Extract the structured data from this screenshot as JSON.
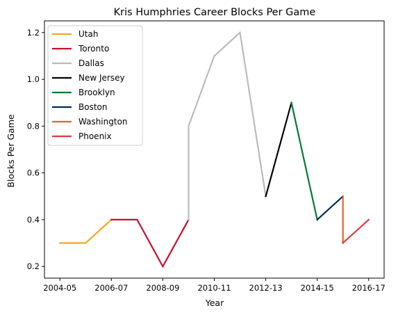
{
  "chart_data": {
    "type": "line",
    "title": "Kris Humphries Career Blocks Per Game",
    "xlabel": "Year",
    "ylabel": "Blocks Per Game",
    "x_ticks": [
      {
        "index": 0,
        "label": "2004-05"
      },
      {
        "index": 2,
        "label": "2006-07"
      },
      {
        "index": 4,
        "label": "2008-09"
      },
      {
        "index": 6,
        "label": "2010-11"
      },
      {
        "index": 8,
        "label": "2012-13"
      },
      {
        "index": 10,
        "label": "2014-15"
      },
      {
        "index": 12,
        "label": "2016-17"
      }
    ],
    "y_ticks": [
      0.2,
      0.4,
      0.6,
      0.8,
      1.0,
      1.2
    ],
    "y_tick_labels": [
      "0.2",
      "0.4",
      "0.6",
      "0.8",
      "1.0",
      "1.2"
    ],
    "xlim": [
      -0.6,
      12.6
    ],
    "ylim": [
      0.15,
      1.25
    ],
    "legend_position": "top-left",
    "series": [
      {
        "name": "Utah",
        "color": "#f5a623",
        "points": [
          [
            0,
            0.3
          ],
          [
            1,
            0.3
          ],
          [
            2,
            0.4
          ]
        ]
      },
      {
        "name": "Toronto",
        "color": "#c8102e",
        "points": [
          [
            2,
            0.4
          ],
          [
            3,
            0.4
          ],
          [
            4,
            0.2
          ],
          [
            5,
            0.4
          ]
        ]
      },
      {
        "name": "Dallas",
        "color": "#bbbbbb",
        "points": [
          [
            5,
            0.4
          ],
          [
            5,
            0.8
          ],
          [
            6,
            1.1
          ],
          [
            7,
            1.2
          ],
          [
            8,
            0.5
          ]
        ]
      },
      {
        "name": "New Jersey",
        "color": "#000000",
        "points": [
          [
            8,
            0.5
          ],
          [
            9,
            0.9
          ]
        ]
      },
      {
        "name": "Brooklyn",
        "color": "#007a33",
        "points": [
          [
            9,
            0.9
          ],
          [
            10,
            0.4
          ]
        ]
      },
      {
        "name": "Boston",
        "color": "#002b5c",
        "points": [
          [
            10,
            0.4
          ],
          [
            11,
            0.5
          ]
        ]
      },
      {
        "name": "Washington",
        "color": "#e0662d",
        "points": [
          [
            11,
            0.5
          ],
          [
            11,
            0.3
          ]
        ]
      },
      {
        "name": "Phoenix",
        "color": "#e03a3e",
        "points": [
          [
            11,
            0.3
          ],
          [
            12,
            0.4
          ]
        ]
      }
    ]
  }
}
